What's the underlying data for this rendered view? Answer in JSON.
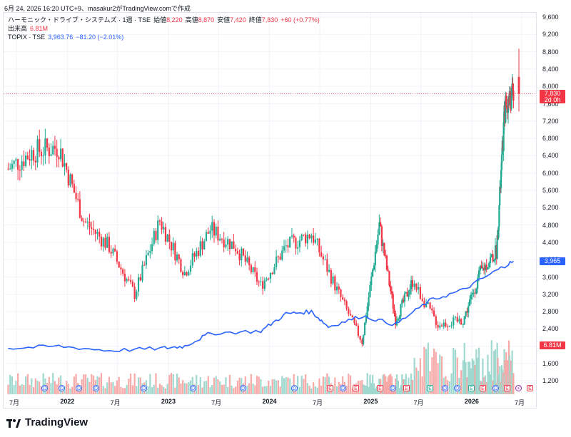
{
  "header": {
    "info_line": "6月 24, 2026 16:20 UTC+9、masakur2がTradingView.comで作成"
  },
  "legend": {
    "symbol": "ハーモニック・ドライブ・システムズ · 1週 · TSE",
    "open_label": "始値",
    "open_value": "8,220",
    "high_label": "高値",
    "high_value": "8,870",
    "low_label": "安値",
    "low_value": "7,420",
    "close_label": "終値",
    "close_value": "7,830",
    "change": "+60 (+0.77%)",
    "volume_label": "出来高",
    "volume_value": "6.81M",
    "compare_symbol": "TOPIX · TSE",
    "compare_value": "3,963.76",
    "compare_change": "−81.20 (−2.01%)"
  },
  "price_tag": {
    "price": "7,830",
    "countdown": "2d 0h"
  },
  "topix_tag": "3,965",
  "volume_tag": "6.81M",
  "y_axis_labels": [
    "9,600",
    "9,200",
    "8,800",
    "8,400",
    "8,000",
    "7,600",
    "7,200",
    "6,800",
    "6,400",
    "6,000",
    "5,600",
    "5,200",
    "4,800",
    "4,400",
    "4,000",
    "3,600",
    "3,200",
    "2,800",
    "2,400",
    "2,000",
    "1,600",
    "1,200"
  ],
  "x_axis_labels": [
    {
      "text": "7月",
      "bold": false
    },
    {
      "text": "2022",
      "bold": true
    },
    {
      "text": "7月",
      "bold": false
    },
    {
      "text": "2023",
      "bold": true
    },
    {
      "text": "7月",
      "bold": false
    },
    {
      "text": "2024",
      "bold": true
    },
    {
      "text": "7月",
      "bold": false
    },
    {
      "text": "2025",
      "bold": true
    },
    {
      "text": "7月",
      "bold": false
    },
    {
      "text": "2026",
      "bold": true
    },
    {
      "text": "7月",
      "bold": false
    }
  ],
  "events": [
    "D",
    "D",
    "D",
    "D",
    "D",
    "D",
    "D",
    "D",
    "E",
    "D",
    "E",
    "E",
    "D",
    "E",
    "Eg",
    "D",
    "D",
    "Eg",
    "E",
    "D",
    "E",
    "S",
    "E"
  ],
  "brand": "TradingView",
  "colors": {
    "up": "#22ab94",
    "down": "#f23645",
    "topix": "#2962ff",
    "up_vol": "#9fd8cf",
    "down_vol": "#f7a9a7",
    "grid": "#f0f3fa"
  },
  "chart_data": {
    "type": "candlestick",
    "price_key_points": {
      "dates": [
        "2021-06",
        "2021-09",
        "2021-12",
        "2022-03",
        "2022-06",
        "2022-09",
        "2022-12",
        "2023-03",
        "2023-06",
        "2023-09",
        "2023-12",
        "2024-03",
        "2024-06",
        "2024-09",
        "2024-12",
        "2025-02",
        "2025-04",
        "2025-06",
        "2025-09",
        "2025-12",
        "2026-02",
        "2026-04",
        "2026-05",
        "2026-06"
      ],
      "close": [
        6100,
        6500,
        6600,
        4900,
        4300,
        3200,
        4900,
        3700,
        4700,
        4300,
        3400,
        4300,
        4600,
        3300,
        2100,
        4800,
        2600,
        3500,
        2500,
        2600,
        3700,
        4200,
        7500,
        7830
      ]
    },
    "topix_key_points": {
      "dates": [
        "2021-06",
        "2021-12",
        "2022-06",
        "2022-12",
        "2023-03",
        "2023-06",
        "2023-12",
        "2024-03",
        "2024-06",
        "2024-08",
        "2024-12",
        "2025-04",
        "2025-08",
        "2025-12",
        "2026-04",
        "2026-06"
      ],
      "values": [
        1950,
        2000,
        1900,
        1950,
        2000,
        2300,
        2350,
        2750,
        2800,
        2450,
        2700,
        2500,
        3050,
        3300,
        3750,
        3965
      ]
    },
    "last_ohlc": {
      "open": 8220,
      "high": 8870,
      "low": 7420,
      "close": 7830
    },
    "last_volume": "6.81M",
    "y_range": [
      1000,
      9800
    ]
  }
}
